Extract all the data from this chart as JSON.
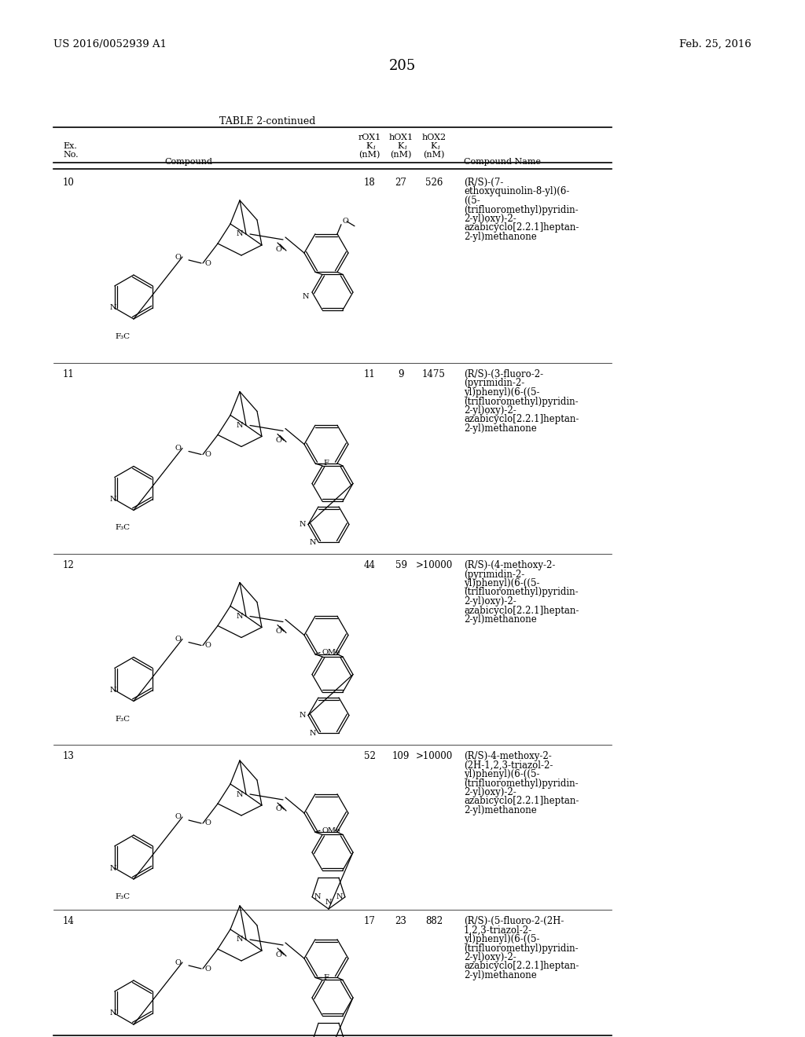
{
  "page_number": "205",
  "patent_number": "US 2016/0052939 A1",
  "patent_date": "Feb. 25, 2016",
  "table_title": "TABLE 2-continued",
  "bg_color": "#ffffff",
  "entries": [
    {
      "ex_no": "10",
      "rox1": "18",
      "hox1": "27",
      "hox2": "526",
      "name_lines": [
        "(R/S)-(7-",
        "ethoxyquinolin-8-yl)(6-",
        "((5-",
        "(trifluoromethyl)pyridin-",
        "2-yl)oxy)-2-",
        "azabicyclo[2.2.1]heptan-",
        "2-yl)methanone"
      ]
    },
    {
      "ex_no": "11",
      "rox1": "11",
      "hox1": "9",
      "hox2": "1475",
      "name_lines": [
        "(R/S)-(3-fluoro-2-",
        "(pyrimidin-2-",
        "yl)phenyl)(6-((5-",
        "(trifluoromethyl)pyridin-",
        "2-yl)oxy)-2-",
        "azabicyclo[2.2.1]heptan-",
        "2-yl)methanone"
      ]
    },
    {
      "ex_no": "12",
      "rox1": "44",
      "hox1": "59",
      "hox2": ">10000",
      "name_lines": [
        "(R/S)-(4-methoxy-2-",
        "(pyrimidin-2-",
        "yl)phenyl)(6-((5-",
        "(trifluoromethyl)pyridin-",
        "2-yl)oxy)-2-",
        "azabicyclo[2.2.1]heptan-",
        "2-yl)methanone"
      ]
    },
    {
      "ex_no": "13",
      "rox1": "52",
      "hox1": "109",
      "hox2": ">10000",
      "name_lines": [
        "(R/S)-4-methoxy-2-",
        "(2H-1,2,3-triazol-2-",
        "yl)phenyl)(6-((5-",
        "(trifluoromethyl)pyridin-",
        "2-yl)oxy)-2-",
        "azabicyclo[2.2.1]heptan-",
        "2-yl)methanone"
      ]
    },
    {
      "ex_no": "14",
      "rox1": "17",
      "hox1": "23",
      "hox2": "882",
      "name_lines": [
        "(R/S)-(5-fluoro-2-(2H-",
        "1,2,3-triazol-2-",
        "yl)phenyl)(6-((5-",
        "(trifluoromethyl)pyridin-",
        "2-yl)oxy)-2-",
        "azabicyclo[2.2.1]heptan-",
        "2-yl)methanone"
      ]
    }
  ]
}
